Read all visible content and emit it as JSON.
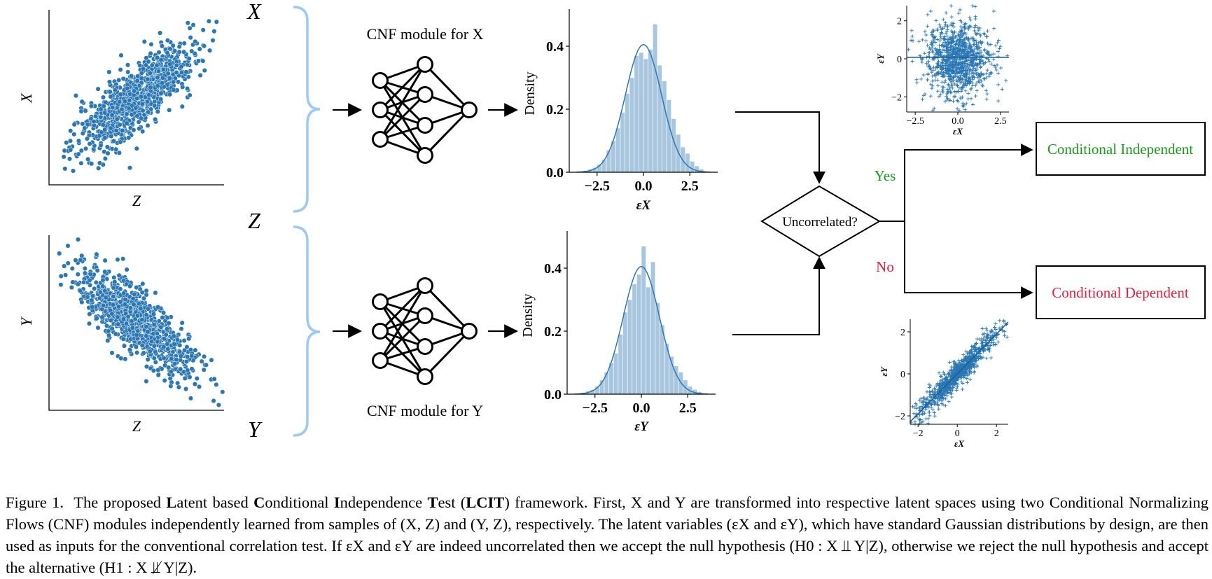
{
  "figure": {
    "var_x": "X",
    "var_y": "Y",
    "var_z": "Z",
    "cnf_top": "CNF module for X",
    "cnf_bottom": "CNF module for Y",
    "decision": "Uncorrelated?",
    "yes": "Yes",
    "no": "No",
    "out_independent": "Conditional Independent",
    "out_dependent": "Conditional Dependent",
    "colors": {
      "point": "#2a77b4",
      "hist": "#a9c6e1",
      "brace": "#9ccaf4",
      "yes": "#1a9a1a",
      "no": "#ee1b3a"
    }
  },
  "chart_data": [
    {
      "type": "scatter",
      "name": "scatter-x-vs-z",
      "xlabel": "Z",
      "ylabel": "X",
      "correlation": "positive",
      "ticks": false
    },
    {
      "type": "scatter",
      "name": "scatter-y-vs-z",
      "xlabel": "Z",
      "ylabel": "Y",
      "correlation": "negative",
      "ticks": false
    },
    {
      "type": "bar",
      "name": "hist-eps-x",
      "xlabel": "εX",
      "ylabel": "Density",
      "xticks": [
        "−2.5",
        "0.0",
        "2.5"
      ],
      "yticks": [
        "0.0",
        "0.2",
        "0.4"
      ],
      "xlim": [
        -4,
        4
      ],
      "ylim": [
        0,
        0.5
      ],
      "bin_centers": [
        -3.125,
        -2.875,
        -2.625,
        -2.375,
        -2.125,
        -1.875,
        -1.625,
        -1.375,
        -1.125,
        -0.875,
        -0.625,
        -0.375,
        -0.125,
        0.125,
        0.375,
        0.625,
        0.875,
        1.125,
        1.375,
        1.625,
        1.875,
        2.125,
        2.375,
        2.625,
        2.875,
        3.125
      ],
      "values": [
        0.005,
        0.01,
        0.015,
        0.025,
        0.04,
        0.07,
        0.1,
        0.14,
        0.19,
        0.25,
        0.3,
        0.37,
        0.38,
        0.36,
        0.39,
        0.47,
        0.34,
        0.29,
        0.23,
        0.17,
        0.12,
        0.08,
        0.06,
        0.035,
        0.02,
        0.01
      ],
      "kde": true
    },
    {
      "type": "bar",
      "name": "hist-eps-y",
      "xlabel": "εY",
      "ylabel": "Density",
      "xticks": [
        "−2.5",
        "0.0",
        "2.5"
      ],
      "yticks": [
        "0.0",
        "0.2",
        "0.4"
      ],
      "xlim": [
        -4,
        4
      ],
      "ylim": [
        0,
        0.5
      ],
      "bin_centers": [
        -3.125,
        -2.875,
        -2.625,
        -2.375,
        -2.125,
        -1.875,
        -1.625,
        -1.375,
        -1.125,
        -0.875,
        -0.625,
        -0.375,
        -0.125,
        0.125,
        0.375,
        0.625,
        0.875,
        1.125,
        1.375,
        1.625,
        1.875,
        2.125,
        2.375,
        2.625,
        2.875,
        3.125
      ],
      "values": [
        0.005,
        0.01,
        0.015,
        0.025,
        0.045,
        0.07,
        0.1,
        0.13,
        0.19,
        0.26,
        0.3,
        0.35,
        0.38,
        0.47,
        0.34,
        0.42,
        0.29,
        0.22,
        0.16,
        0.12,
        0.09,
        0.07,
        0.045,
        0.025,
        0.015,
        0.008
      ],
      "kde": true
    },
    {
      "type": "scatter",
      "name": "latent-scatter-uncorrelated",
      "xlabel": "εX",
      "ylabel": "εY",
      "xticks": [
        "−2.5",
        "0.0",
        "2.5"
      ],
      "yticks": [
        "−2",
        "0",
        "2"
      ],
      "xlim": [
        -3,
        3
      ],
      "ylim": [
        -2.8,
        2.8
      ],
      "correlation": 0.0,
      "regression_line": true
    },
    {
      "type": "scatter",
      "name": "latent-scatter-correlated",
      "xlabel": "εX",
      "ylabel": "εY",
      "xticks": [
        "−2",
        "0",
        "2"
      ],
      "yticks": [
        "−2",
        "0",
        "2"
      ],
      "xlim": [
        -2.4,
        2.6
      ],
      "ylim": [
        -2.4,
        2.6
      ],
      "correlation": 0.95,
      "regression_line": true
    }
  ],
  "caption": {
    "label": "Figure 1.",
    "intro": "The proposed",
    "title_parts": [
      {
        "bold": "L",
        "rest": "atent based "
      },
      {
        "bold": "C",
        "rest": "onditional "
      },
      {
        "bold": "I",
        "rest": "ndependence "
      },
      {
        "bold": "T",
        "rest": "est ("
      }
    ],
    "acronym": "LCIT",
    "p1": ") framework. First, X and Y are transformed into respective latent spaces using two Conditional Normalizing Flows (CNF) modules independently learned from samples of (X, Z) and (Y, Z), respectively. The latent variables (εX and εY), which have standard Gaussian distributions by design, are then used as inputs for the conventional correlation test. If εX and εY are indeed uncorrelated then we accept the null hypothesis (H0 : X ⫫ Y|Z), otherwise we reject the null hypothesis and accept the alternative (H1 : X ⫫̸ Y|Z)."
  }
}
